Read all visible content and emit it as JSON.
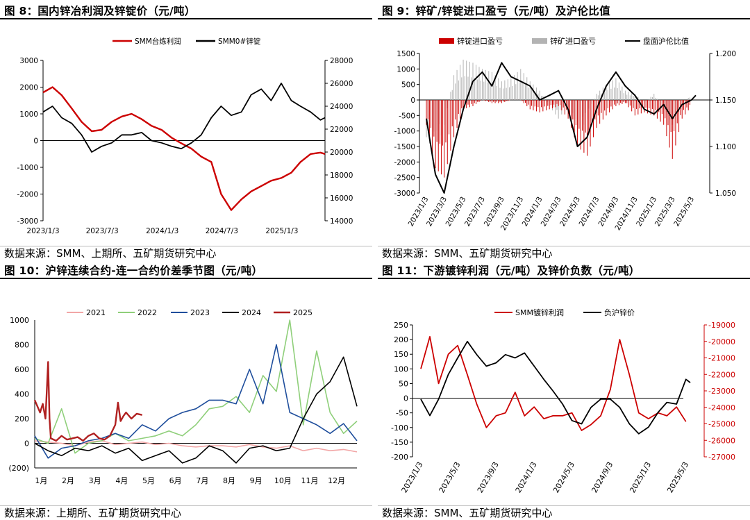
{
  "chart_data": [
    {
      "type": "line",
      "title": "图 8：国内锌冶利润及锌锭价（元/吨）",
      "source": "数据来源：SMM、上期所、五矿期货研究中心",
      "x_ticks": [
        "2023/1/3",
        "2023/7/3",
        "2024/1/3",
        "2024/7/3",
        "2025/1/3"
      ],
      "x_range": [
        "2023-01-03",
        "2025-05-15"
      ],
      "left_axis": {
        "ticks": [
          "3000",
          "2000",
          "1000",
          "0",
          "-1000",
          "-2000",
          "-3000"
        ],
        "ylim": [
          -3000,
          3000
        ]
      },
      "right_axis": {
        "ticks": [
          "28000",
          "26000",
          "24000",
          "22000",
          "20000",
          "18000",
          "16000",
          "14000"
        ],
        "ylim": [
          14000,
          28000
        ]
      },
      "legend": [
        "SMM台炼利润",
        "SMM0#锌锭"
      ],
      "series": [
        {
          "name": "SMM台炼利润",
          "axis": "left",
          "color": "#cc0000",
          "dates": [
            "2023-01-03",
            "2023-02-01",
            "2023-03-01",
            "2023-04-01",
            "2023-05-01",
            "2023-06-01",
            "2023-07-01",
            "2023-08-01",
            "2023-09-01",
            "2023-10-01",
            "2023-11-01",
            "2023-12-01",
            "2024-01-01",
            "2024-02-01",
            "2024-03-01",
            "2024-04-01",
            "2024-05-01",
            "2024-06-01",
            "2024-07-01",
            "2024-08-01",
            "2024-09-01",
            "2024-10-01",
            "2024-11-01",
            "2024-12-01",
            "2025-01-01",
            "2025-02-01",
            "2025-03-01",
            "2025-04-01",
            "2025-05-01",
            "2025-05-15"
          ],
          "values": [
            1800,
            2000,
            1700,
            1200,
            700,
            350,
            400,
            700,
            900,
            1000,
            800,
            550,
            400,
            100,
            -100,
            -300,
            -600,
            -800,
            -2000,
            -2600,
            -2200,
            -1900,
            -1700,
            -1500,
            -1400,
            -1200,
            -800,
            -500,
            -450,
            -500
          ]
        },
        {
          "name": "SMM0#锌锭",
          "axis": "right",
          "color": "#000000",
          "dates": [
            "2023-01-03",
            "2023-02-01",
            "2023-03-01",
            "2023-04-01",
            "2023-05-01",
            "2023-06-01",
            "2023-07-01",
            "2023-08-01",
            "2023-09-01",
            "2023-10-01",
            "2023-11-01",
            "2023-12-01",
            "2024-01-01",
            "2024-02-01",
            "2024-03-01",
            "2024-04-01",
            "2024-05-01",
            "2024-06-01",
            "2024-07-01",
            "2024-08-01",
            "2024-09-01",
            "2024-10-01",
            "2024-11-01",
            "2024-12-01",
            "2025-01-01",
            "2025-02-01",
            "2025-03-01",
            "2025-04-01",
            "2025-05-01",
            "2025-05-15"
          ],
          "values": [
            23500,
            24000,
            23000,
            22500,
            21500,
            20000,
            20500,
            20800,
            21500,
            21500,
            21700,
            21000,
            20800,
            20500,
            20300,
            20800,
            21500,
            23000,
            24000,
            23200,
            23500,
            25000,
            25500,
            24500,
            26000,
            24500,
            24000,
            23500,
            22800,
            23000
          ]
        }
      ]
    },
    {
      "type": "line",
      "title": "图 9：锌矿/锌锭进口盈亏（元/吨）及沪伦比值",
      "source": "数据来源：SMM、五矿期货研究中心",
      "x_ticks": [
        "2023/1/3",
        "2023/3/3",
        "2023/5/3",
        "2023/7/3",
        "2023/9/3",
        "2023/11/3",
        "2024/1/3",
        "2024/3/3",
        "2024/5/3",
        "2024/7/3",
        "2024/9/3",
        "2024/11/3",
        "2025/1/3",
        "2025/3/3",
        "2025/5/3"
      ],
      "x_range": [
        "2023-01-03",
        "2025-05-15"
      ],
      "left_axis": {
        "ticks": [
          "1500",
          "1000",
          "500",
          "0",
          "-500",
          "-1000",
          "-1500",
          "-2000",
          "-2500",
          "-3000"
        ],
        "ylim": [
          -3000,
          1500
        ]
      },
      "right_axis": {
        "ticks": [
          "1.200",
          "1.150",
          "1.100",
          "1.050"
        ],
        "ylim": [
          1.05,
          1.2
        ]
      },
      "legend": [
        "锌锭进口盈亏",
        "锌矿进口盈亏",
        "盘面沪伦比值"
      ],
      "series": [
        {
          "name": "锌锭进口盈亏",
          "axis": "left",
          "color": "#cc0000",
          "style": "bar-area",
          "dates": [
            "2023-01-03",
            "2023-02-01",
            "2023-03-01",
            "2023-04-01",
            "2023-05-01",
            "2023-06-01",
            "2023-07-01",
            "2023-08-01",
            "2023-09-01",
            "2023-10-01",
            "2023-11-01",
            "2023-12-01",
            "2024-01-01",
            "2024-02-01",
            "2024-03-01",
            "2024-04-01",
            "2024-05-01",
            "2024-06-01",
            "2024-07-01",
            "2024-08-01",
            "2024-09-01",
            "2024-10-01",
            "2024-11-01",
            "2024-12-01",
            "2025-01-01",
            "2025-02-01",
            "2025-03-01",
            "2025-04-01",
            "2025-05-01"
          ],
          "values": [
            -800,
            -2200,
            -2500,
            -1200,
            -300,
            -200,
            0,
            -100,
            -100,
            0,
            0,
            -300,
            -400,
            -300,
            -200,
            -600,
            -1500,
            -1800,
            -900,
            -500,
            -200,
            -100,
            -500,
            -400,
            -500,
            -800,
            -1900,
            -600,
            -200
          ]
        },
        {
          "name": "锌矿进口盈亏",
          "axis": "left",
          "color": "#b3b3b3",
          "style": "bar-area",
          "dates": [
            "2023-01-03",
            "2023-02-01",
            "2023-03-01",
            "2023-04-01",
            "2023-05-01",
            "2023-06-01",
            "2023-07-01",
            "2023-08-01",
            "2023-09-01",
            "2023-10-01",
            "2023-11-01",
            "2023-12-01",
            "2024-01-01",
            "2024-02-01",
            "2024-03-01",
            "2024-04-01",
            "2024-05-01",
            "2024-06-01",
            "2024-07-01",
            "2024-08-01",
            "2024-09-01",
            "2024-10-01",
            "2024-11-01",
            "2024-12-01",
            "2025-01-01",
            "2025-02-01",
            "2025-03-01",
            "2025-04-01",
            "2025-05-01"
          ],
          "values": [
            -1200,
            -1800,
            -800,
            800,
            1300,
            1200,
            1000,
            900,
            600,
            700,
            1000,
            600,
            300,
            -200,
            -600,
            -200,
            -1200,
            -600,
            200,
            500,
            700,
            300,
            200,
            -100,
            200,
            -300,
            -800,
            -200,
            200
          ]
        },
        {
          "name": "盘面沪伦比值",
          "axis": "right",
          "color": "#000000",
          "style": "line",
          "dates": [
            "2023-01-03",
            "2023-02-01",
            "2023-03-01",
            "2023-04-01",
            "2023-05-01",
            "2023-06-01",
            "2023-07-01",
            "2023-08-01",
            "2023-09-01",
            "2023-10-01",
            "2023-11-01",
            "2023-12-01",
            "2024-01-01",
            "2024-02-01",
            "2024-03-01",
            "2024-04-01",
            "2024-05-01",
            "2024-06-01",
            "2024-07-01",
            "2024-08-01",
            "2024-09-01",
            "2024-10-01",
            "2024-11-01",
            "2024-12-01",
            "2025-01-01",
            "2025-02-01",
            "2025-03-01",
            "2025-04-01",
            "2025-05-01",
            "2025-05-15"
          ],
          "values": [
            1.13,
            1.07,
            1.05,
            1.1,
            1.14,
            1.17,
            1.18,
            1.165,
            1.19,
            1.175,
            1.17,
            1.165,
            1.15,
            1.155,
            1.16,
            1.14,
            1.1,
            1.11,
            1.14,
            1.165,
            1.18,
            1.165,
            1.155,
            1.14,
            1.135,
            1.145,
            1.13,
            1.145,
            1.15,
            1.155
          ]
        }
      ]
    },
    {
      "type": "line",
      "title": "图 10：沪锌连续合约-连一合约价差季节图（元/吨）",
      "source": "数据来源：上期所、五矿期货研究中心",
      "x_ticks": [
        "1月",
        "2月",
        "3月",
        "4月",
        "5月",
        "6月",
        "7月",
        "8月",
        "9月",
        "10月",
        "11月",
        "12月"
      ],
      "y_ticks": [
        "1000",
        "800",
        "600",
        "400",
        "200",
        "0",
        "(200)"
      ],
      "ylim": [
        -200,
        1000
      ],
      "legend": [
        "2021",
        "2022",
        "2023",
        "2024",
        "2025"
      ],
      "series": [
        {
          "name": "2021",
          "color": "#f2a6a6",
          "x": [
            0,
            0.5,
            1,
            1.5,
            2,
            2.5,
            3,
            3.5,
            4,
            4.5,
            5,
            5.5,
            6,
            6.5,
            7,
            7.5,
            8,
            8.5,
            9,
            9.5,
            10,
            10.5,
            11,
            11.5,
            12
          ],
          "values": [
            20,
            10,
            0,
            -20,
            10,
            20,
            -10,
            0,
            10,
            -10,
            0,
            -20,
            -30,
            -20,
            -20,
            -30,
            -10,
            -30,
            -40,
            -20,
            -60,
            -40,
            -60,
            -50,
            -70
          ]
        },
        {
          "name": "2022",
          "color": "#8fcf7a",
          "x": [
            0,
            0.5,
            1,
            1.5,
            2,
            2.5,
            3,
            3.5,
            4,
            4.5,
            5,
            5.5,
            6,
            6.5,
            7,
            7.5,
            8,
            8.5,
            9,
            9.5,
            10,
            10.5,
            11,
            11.5,
            12
          ],
          "values": [
            40,
            0,
            280,
            -80,
            0,
            20,
            80,
            20,
            40,
            60,
            100,
            60,
            150,
            280,
            300,
            380,
            250,
            550,
            420,
            1000,
            150,
            750,
            250,
            80,
            180
          ]
        },
        {
          "name": "2023",
          "color": "#1f4e9c",
          "x": [
            0,
            0.5,
            1,
            1.5,
            2,
            2.5,
            3,
            3.5,
            4,
            4.5,
            5,
            5.5,
            6,
            6.5,
            7,
            7.5,
            8,
            8.5,
            9,
            9.5,
            10,
            10.5,
            11,
            11.5,
            12
          ],
          "values": [
            60,
            -120,
            -40,
            -20,
            20,
            40,
            80,
            40,
            150,
            100,
            200,
            250,
            280,
            350,
            350,
            320,
            600,
            320,
            800,
            250,
            200,
            150,
            80,
            160,
            20
          ]
        },
        {
          "name": "2024",
          "color": "#000000",
          "x": [
            0,
            0.5,
            1,
            1.5,
            2,
            2.5,
            3,
            3.5,
            4,
            4.5,
            5,
            5.5,
            6,
            6.5,
            7,
            7.5,
            8,
            8.5,
            9,
            9.5,
            10,
            10.5,
            11,
            11.5,
            12
          ],
          "values": [
            0,
            -60,
            -100,
            -40,
            -60,
            -20,
            -80,
            -40,
            -140,
            -100,
            -60,
            -160,
            -120,
            -20,
            -60,
            -160,
            -40,
            -20,
            -60,
            -40,
            200,
            400,
            500,
            700,
            300
          ]
        },
        {
          "name": "2025",
          "color": "#b02020",
          "width": 2.4,
          "x": [
            0,
            0.1,
            0.2,
            0.3,
            0.4,
            0.5,
            0.55,
            0.6,
            0.8,
            1,
            1.2,
            1.4,
            1.6,
            1.8,
            2,
            2.2,
            2.4,
            2.6,
            2.8,
            3,
            3.1,
            3.2,
            3.3,
            3.4,
            3.6,
            3.8,
            4
          ],
          "values": [
            350,
            300,
            250,
            320,
            200,
            660,
            200,
            40,
            20,
            60,
            30,
            40,
            50,
            20,
            60,
            80,
            40,
            30,
            60,
            150,
            330,
            180,
            220,
            250,
            200,
            240,
            230
          ]
        }
      ]
    },
    {
      "type": "line",
      "title": "图 11：下游镀锌利润（元/吨）及锌价负数（元/吨）",
      "source": "数据来源：SMM、五矿期货研究中心",
      "x_ticks": [
        "2023/1/3",
        "2023/5/3",
        "2023/9/3",
        "2024/1/3",
        "2024/5/3",
        "2024/9/3",
        "2025/1/3",
        "2025/5/3"
      ],
      "x_range": [
        "2023-01-03",
        "2025-05-15"
      ],
      "left_axis": {
        "ticks": [
          "250",
          "200",
          "150",
          "100",
          "50",
          "0",
          "-50",
          "-100",
          "-150",
          "-200"
        ],
        "ylim": [
          -200,
          250
        ]
      },
      "right_axis": {
        "ticks": [
          "-19000",
          "-20000",
          "-21000",
          "-22000",
          "-23000",
          "-24000",
          "-25000",
          "-26000",
          "-27000"
        ],
        "ylim": [
          -27000,
          -19000
        ]
      },
      "legend": [
        "SMM镀锌利润",
        "负沪锌价"
      ],
      "series": [
        {
          "name": "SMM镀锌利润",
          "axis": "left",
          "color": "#cc0000",
          "dates": [
            "2023-01-03",
            "2023-02-01",
            "2023-03-01",
            "2023-04-01",
            "2023-05-01",
            "2023-06-01",
            "2023-07-01",
            "2023-08-01",
            "2023-09-01",
            "2023-10-01",
            "2023-11-01",
            "2023-12-01",
            "2024-01-01",
            "2024-02-01",
            "2024-03-01",
            "2024-04-01",
            "2024-05-01",
            "2024-06-01",
            "2024-07-01",
            "2024-08-01",
            "2024-09-01",
            "2024-10-01",
            "2024-11-01",
            "2024-12-01",
            "2025-01-01",
            "2025-02-01",
            "2025-03-01",
            "2025-04-01",
            "2025-05-01"
          ],
          "values": [
            100,
            210,
            50,
            150,
            180,
            80,
            -20,
            -100,
            -60,
            -50,
            20,
            -60,
            -30,
            -70,
            -60,
            -60,
            -50,
            -110,
            -90,
            -60,
            30,
            200,
            80,
            -50,
            -70,
            -50,
            -60,
            -30,
            -80
          ]
        },
        {
          "name": "负沪锌价",
          "axis": "right",
          "color": "#000000",
          "dates": [
            "2023-01-03",
            "2023-02-01",
            "2023-03-01",
            "2023-04-01",
            "2023-05-01",
            "2023-06-01",
            "2023-07-01",
            "2023-08-01",
            "2023-09-01",
            "2023-10-01",
            "2023-11-01",
            "2023-12-01",
            "2024-01-01",
            "2024-02-01",
            "2024-03-01",
            "2024-04-01",
            "2024-05-01",
            "2024-06-01",
            "2024-07-01",
            "2024-08-01",
            "2024-09-01",
            "2024-10-01",
            "2024-11-01",
            "2024-12-01",
            "2025-01-01",
            "2025-02-01",
            "2025-03-01",
            "2025-04-01",
            "2025-05-01",
            "2025-05-15"
          ],
          "values": [
            -23500,
            -24500,
            -23500,
            -22000,
            -21000,
            -20000,
            -20800,
            -21500,
            -21300,
            -20800,
            -21000,
            -20700,
            -21500,
            -22300,
            -23000,
            -23800,
            -24800,
            -25000,
            -24000,
            -23500,
            -23500,
            -24000,
            -25000,
            -25600,
            -25200,
            -24300,
            -23700,
            -23800,
            -22300,
            -22500
          ]
        }
      ]
    }
  ]
}
